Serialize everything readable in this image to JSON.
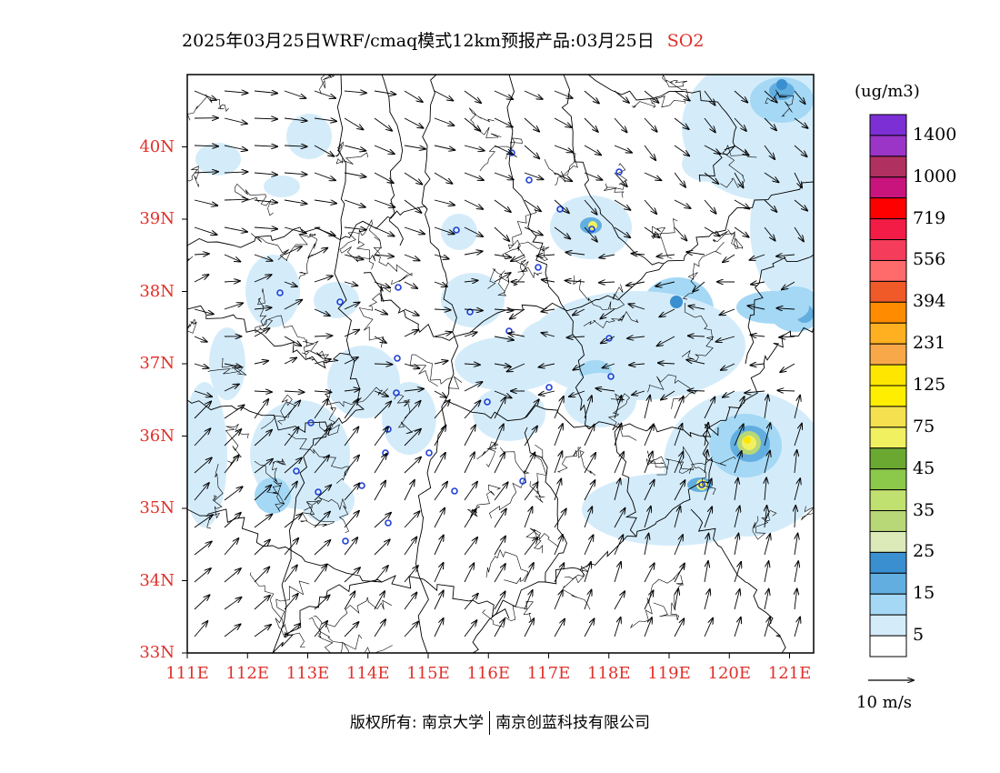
{
  "header": {
    "title": "2025年03月25日WRF/cmaq模式12km预报产品:03月25日",
    "pollutant": "SO2"
  },
  "colors": {
    "axis_label": "#e0302a",
    "boundary": "#000000",
    "station_marker": "#1f3fd6"
  },
  "axes": {
    "lat_labels": [
      "40N",
      "39N",
      "38N",
      "37N",
      "36N",
      "35N",
      "34N",
      "33N"
    ],
    "lon_labels": [
      "111E",
      "112E",
      "113E",
      "114E",
      "115E",
      "116E",
      "117E",
      "118E",
      "119E",
      "120E",
      "121E"
    ],
    "lat_range": [
      33,
      41
    ],
    "lon_range": [
      111,
      121.4
    ]
  },
  "legend": {
    "unit": "(ug/m3)",
    "labels": [
      "1400",
      "1000",
      "719",
      "556",
      "394",
      "231",
      "125",
      "75",
      "45",
      "35",
      "25",
      "15",
      "5"
    ],
    "colors_top_to_bottom": [
      "#7d2fd6",
      "#9b35c8",
      "#b03060",
      "#c8147c",
      "#ff0000",
      "#f21c46",
      "#f53d5b",
      "#ff6a6a",
      "#f05a28",
      "#ff8c00",
      "#ffb020",
      "#f8a848",
      "#ffe600",
      "#ffee00",
      "#f5e050",
      "#f0f060",
      "#6aa832",
      "#8cc84a",
      "#c0e070",
      "#b8d878",
      "#dbeab8",
      "#3a8fd0",
      "#62aee0",
      "#a4d8f5",
      "#d4ecfa",
      "#ffffff"
    ]
  },
  "vector_reference": {
    "label": "10 m/s"
  },
  "footer": {
    "left": "版权所有: 南京大学",
    "right": "南京创蓝科技有限公司"
  }
}
